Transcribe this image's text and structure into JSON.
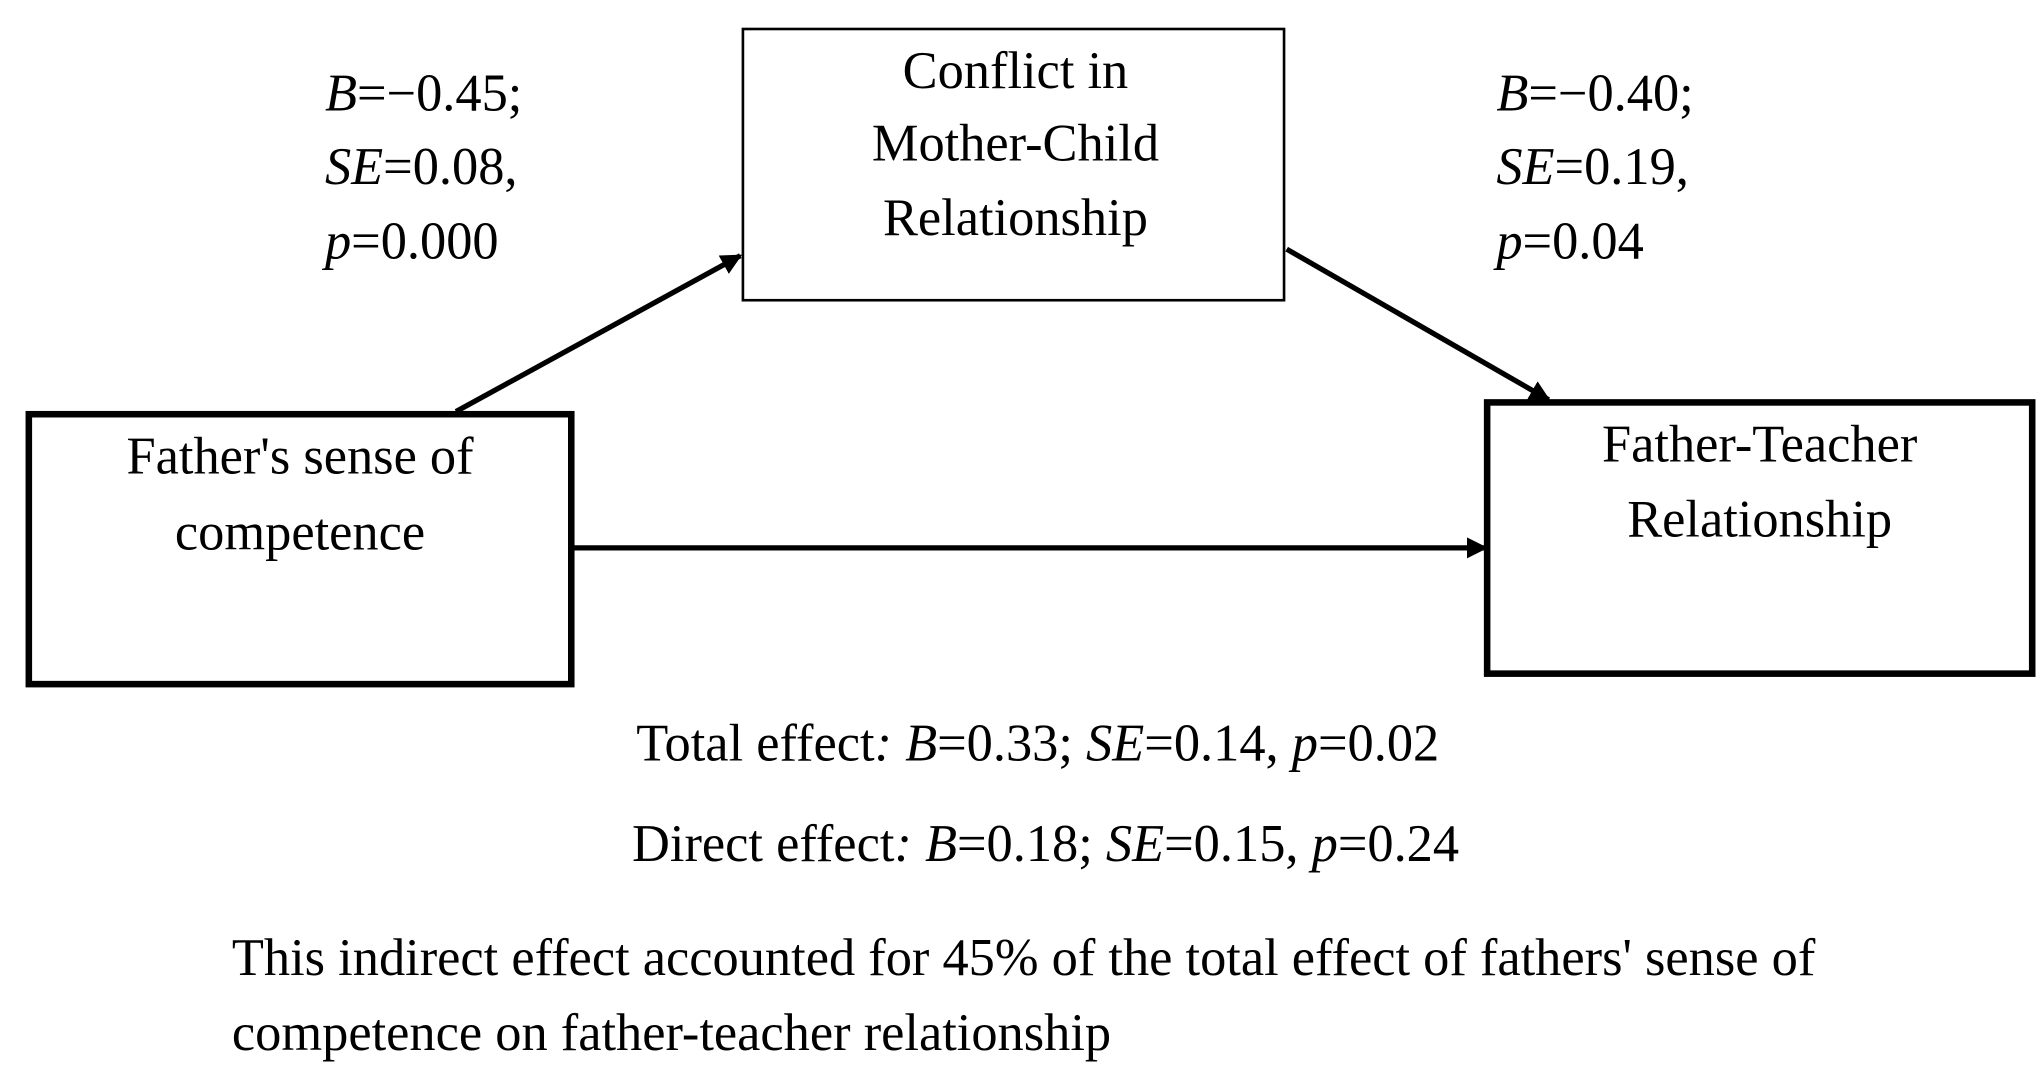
{
  "nodes": [
    {
      "lines": [
        "Conflict in",
        "Mother-Child",
        "Relationship"
      ]
    },
    {
      "lines": [
        "Father's sense of",
        "competence"
      ]
    },
    {
      "lines": [
        "Father-Teacher",
        "Relationship"
      ]
    }
  ],
  "path_stats": [
    {
      "lines": [
        [
          {
            "text": "B",
            "italic": true
          },
          {
            "text": "=−0.45;"
          }
        ],
        [
          {
            "text": "SE",
            "italic": true
          },
          {
            "text": "=0.08,"
          }
        ],
        [
          {
            "text": "p",
            "italic": true
          },
          {
            "text": "=0.000"
          }
        ]
      ]
    },
    {
      "lines": [
        [
          {
            "text": "B",
            "italic": true
          },
          {
            "text": "=−0.40;"
          }
        ],
        [
          {
            "text": "SE",
            "italic": true
          },
          {
            "text": "=0.19,"
          }
        ],
        [
          {
            "text": "p",
            "italic": true
          },
          {
            "text": "=0.04"
          }
        ]
      ]
    }
  ],
  "effects": [
    [
      {
        "text": "Total effect"
      },
      {
        "text": ": B",
        "italic": true
      },
      {
        "text": "=0.33; "
      },
      {
        "text": "SE",
        "italic": true
      },
      {
        "text": "=0.14, "
      },
      {
        "text": "p",
        "italic": true
      },
      {
        "text": "=0.02"
      }
    ],
    [
      {
        "text": "Direct effect"
      },
      {
        "text": ": B",
        "italic": true
      },
      {
        "text": "=0.18; "
      },
      {
        "text": "SE",
        "italic": true
      },
      {
        "text": "=0.15, "
      },
      {
        "text": "p",
        "italic": true
      },
      {
        "text": "=0.24"
      }
    ]
  ],
  "note": {
    "lines": [
      "This indirect effect accounted for 45% of the total effect of fathers' sense of",
      "competence on father-teacher relationship"
    ]
  }
}
